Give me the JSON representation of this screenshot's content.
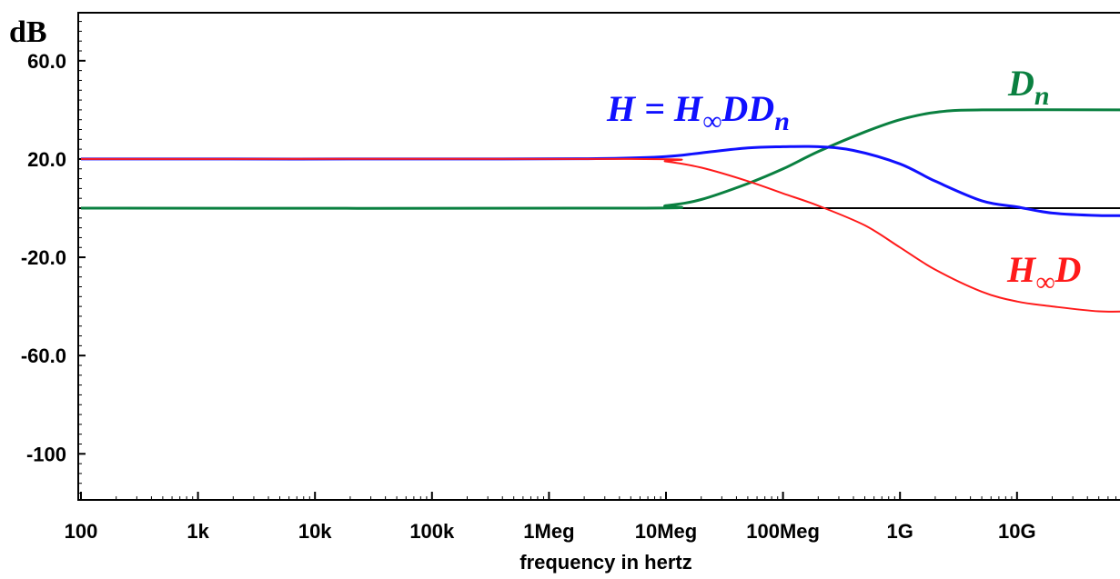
{
  "chart_data": {
    "type": "line",
    "y_unit": "dB",
    "xlabel": "frequency in hertz",
    "x_scale": "log",
    "xlim": [
      100,
      100000000000
    ],
    "ylim": [
      -120,
      80
    ],
    "x_ticks": [
      {
        "value": 100,
        "label": "100"
      },
      {
        "value": 1000,
        "label": "1k"
      },
      {
        "value": 10000,
        "label": "10k"
      },
      {
        "value": 100000,
        "label": "100k"
      },
      {
        "value": 1000000,
        "label": "1Meg"
      },
      {
        "value": 10000000,
        "label": "10Meg"
      },
      {
        "value": 100000000,
        "label": "100Meg"
      },
      {
        "value": 1000000000,
        "label": "1G"
      },
      {
        "value": 10000000000,
        "label": "10G"
      }
    ],
    "y_ticks": [
      {
        "value": 60,
        "label": "60.0"
      },
      {
        "value": 20,
        "label": "20.0"
      },
      {
        "value": -20,
        "label": "-20.0"
      },
      {
        "value": -60,
        "label": "-60.0"
      },
      {
        "value": -100,
        "label": "-100"
      }
    ],
    "reference_line_y": 0,
    "series": [
      {
        "id": "H",
        "color": "#1010ff",
        "stroke_width": 3,
        "points": [
          [
            100,
            20
          ],
          [
            400000,
            20
          ],
          [
            3000000,
            20.2
          ],
          [
            10000000,
            21
          ],
          [
            20000000,
            22.5
          ],
          [
            50000000,
            24.5
          ],
          [
            100000000,
            25
          ],
          [
            200000000,
            25
          ],
          [
            400000000,
            23.5
          ],
          [
            1000000000,
            18
          ],
          [
            2000000000,
            11
          ],
          [
            5000000000,
            3
          ],
          [
            10000000000,
            0.5
          ],
          [
            20000000000,
            -2
          ],
          [
            50000000000,
            -3
          ],
          [
            100000000000,
            -3
          ]
        ]
      },
      {
        "id": "Dn",
        "color": "#0a8040",
        "stroke_width": 3,
        "points": [
          [
            100,
            0
          ],
          [
            5000000,
            0
          ],
          [
            10000000,
            1
          ],
          [
            20000000,
            3.5
          ],
          [
            50000000,
            10
          ],
          [
            100000000,
            16
          ],
          [
            200000000,
            23
          ],
          [
            500000000,
            31
          ],
          [
            1000000000,
            36
          ],
          [
            2000000000,
            39
          ],
          [
            5000000000,
            40
          ],
          [
            100000000000,
            40
          ]
        ]
      },
      {
        "id": "HinfD",
        "color": "#ff1a1a",
        "stroke_width": 2,
        "points": [
          [
            100,
            20
          ],
          [
            5000000,
            20
          ],
          [
            10000000,
            19
          ],
          [
            20000000,
            16.5
          ],
          [
            50000000,
            11
          ],
          [
            100000000,
            6
          ],
          [
            200000000,
            1
          ],
          [
            500000000,
            -7
          ],
          [
            1000000000,
            -16
          ],
          [
            2000000000,
            -25
          ],
          [
            5000000000,
            -34
          ],
          [
            10000000000,
            -38
          ],
          [
            20000000000,
            -40
          ],
          [
            50000000000,
            -42
          ],
          [
            100000000000,
            -42
          ]
        ]
      }
    ],
    "annotations": [
      {
        "id": "H",
        "main": "H = H",
        "sub": "∞",
        "tail": "DD",
        "tail_sub": "n",
        "color": "#1010ff"
      },
      {
        "id": "Dn",
        "main": "D",
        "sub": "n",
        "tail": "",
        "tail_sub": "",
        "color": "#0a8040"
      },
      {
        "id": "HinfD",
        "main": "H",
        "sub": "∞",
        "tail": "D",
        "tail_sub": "",
        "color": "#ff1a1a"
      }
    ]
  }
}
